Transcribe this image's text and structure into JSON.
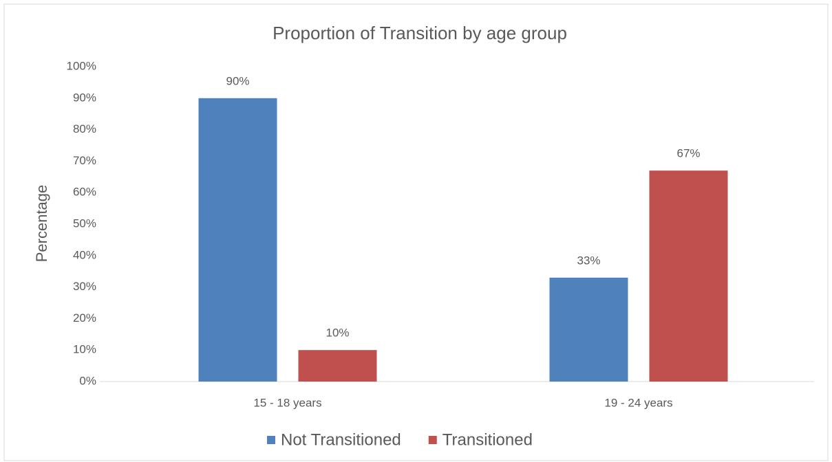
{
  "chart_data": {
    "type": "bar",
    "title": "Proportion of Transition by age group",
    "y_label": "Percentage",
    "categories": [
      "15 - 18 years",
      "19 - 24 years"
    ],
    "series": [
      {
        "name": "Not Transitioned",
        "color": "#4f81bd",
        "values": [
          90,
          33
        ],
        "value_labels": [
          "90%",
          "33%"
        ]
      },
      {
        "name": "Transitioned",
        "color": "#c0504d",
        "values": [
          10,
          67
        ],
        "value_labels": [
          "10%",
          "67%"
        ]
      }
    ],
    "ylim": [
      0,
      100
    ],
    "yticks": [
      {
        "value": 0,
        "label": "0%"
      },
      {
        "value": 10,
        "label": "10%"
      },
      {
        "value": 20,
        "label": "20%"
      },
      {
        "value": 30,
        "label": "30%"
      },
      {
        "value": 40,
        "label": "40%"
      },
      {
        "value": 50,
        "label": "50%"
      },
      {
        "value": 60,
        "label": "60%"
      },
      {
        "value": 70,
        "label": "70%"
      },
      {
        "value": 80,
        "label": "80%"
      },
      {
        "value": 90,
        "label": "90%"
      },
      {
        "value": 100,
        "label": "100%"
      }
    ],
    "grid": false,
    "legend": "bottom"
  }
}
